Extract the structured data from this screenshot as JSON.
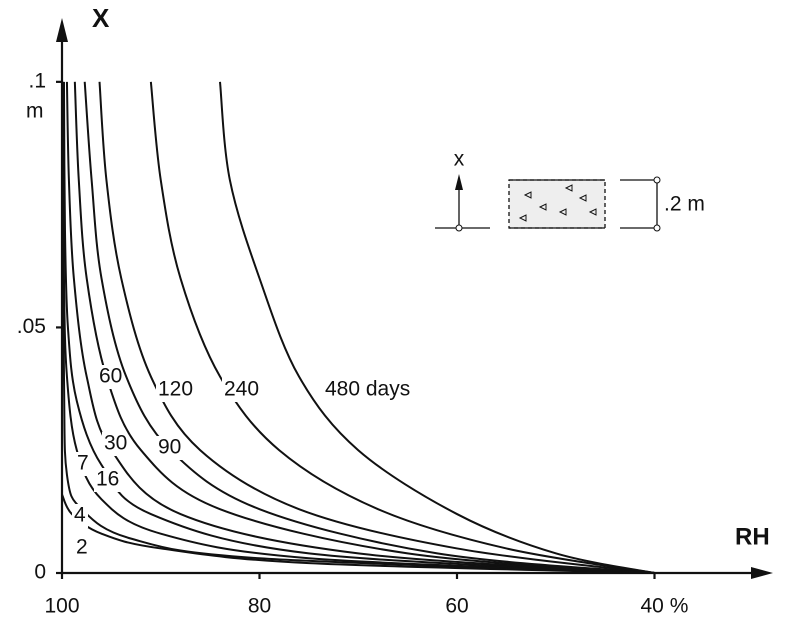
{
  "chart_data": {
    "type": "line",
    "x_label": "RH",
    "y_label": "X",
    "y_unit": "m",
    "xlim": [
      100,
      28
    ],
    "ylim": [
      0,
      0.113
    ],
    "xticks": [
      100,
      80,
      60,
      {
        "value": 40,
        "label": "40 %"
      }
    ],
    "yticks": [
      0,
      {
        "value": 0.05,
        "label": ".05"
      },
      {
        "value": 0.1,
        "label": ".1"
      }
    ],
    "color": "#111111",
    "series": [
      {
        "name": "2",
        "x": [
          100,
          99,
          96,
          90,
          75,
          40
        ],
        "values": [
          0.016,
          0.012,
          0.008,
          0.005,
          0.002,
          0
        ]
      },
      {
        "name": "4",
        "x": [
          100,
          99.8,
          99.5,
          98,
          93,
          80,
          40
        ],
        "values": [
          0.1,
          0.04,
          0.02,
          0.013,
          0.007,
          0.003,
          0
        ]
      },
      {
        "name": "7",
        "x": [
          99.9,
          99.8,
          99.5,
          98.5,
          96,
          90,
          75,
          40
        ],
        "values": [
          0.1,
          0.06,
          0.04,
          0.025,
          0.015,
          0.008,
          0.003,
          0
        ]
      },
      {
        "name": "16",
        "x": [
          99.8,
          99.7,
          99.4,
          98.5,
          96,
          91,
          75,
          40
        ],
        "values": [
          0.1,
          0.07,
          0.05,
          0.035,
          0.022,
          0.012,
          0.004,
          0
        ]
      },
      {
        "name": "30",
        "x": [
          99.5,
          99.3,
          98.8,
          97.5,
          95,
          88,
          70,
          40
        ],
        "values": [
          0.1,
          0.08,
          0.06,
          0.04,
          0.025,
          0.012,
          0.004,
          0
        ]
      },
      {
        "name": "60",
        "x": [
          98.7,
          98.3,
          97.5,
          95.5,
          92,
          84,
          65,
          40
        ],
        "values": [
          0.1,
          0.08,
          0.06,
          0.04,
          0.025,
          0.013,
          0.004,
          0
        ]
      },
      {
        "name": "90",
        "x": [
          97.7,
          97,
          96,
          93.5,
          89,
          80,
          62,
          40
        ],
        "values": [
          0.1,
          0.08,
          0.06,
          0.04,
          0.025,
          0.013,
          0.004,
          0
        ]
      },
      {
        "name": "120",
        "x": [
          96.2,
          95.5,
          94,
          91,
          86,
          76,
          60,
          40
        ],
        "values": [
          0.1,
          0.08,
          0.06,
          0.04,
          0.025,
          0.013,
          0.005,
          0
        ]
      },
      {
        "name": "240",
        "x": [
          91,
          90,
          88,
          84,
          78,
          68,
          55,
          40
        ],
        "values": [
          0.1,
          0.08,
          0.06,
          0.04,
          0.025,
          0.013,
          0.005,
          0
        ]
      },
      {
        "name": "480 days",
        "x": [
          84,
          83,
          80,
          76,
          70,
          60,
          50,
          40
        ],
        "values": [
          0.1,
          0.08,
          0.06,
          0.04,
          0.025,
          0.012,
          0.004,
          0
        ]
      }
    ]
  },
  "inset": {
    "axis_label": "x",
    "thickness": ".2 m"
  }
}
